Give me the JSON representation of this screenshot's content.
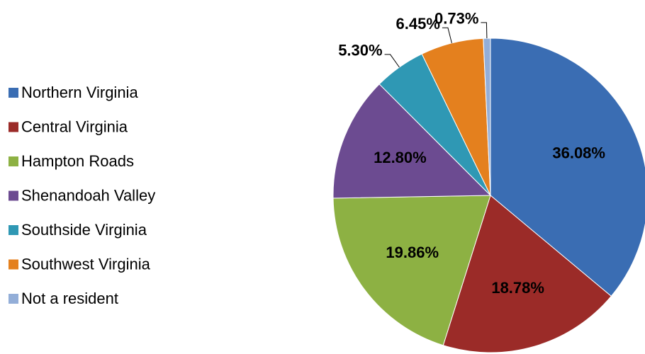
{
  "chart_data": {
    "type": "pie",
    "categories": [
      "Northern Virginia",
      "Central Virginia",
      "Hampton Roads",
      "Shenandoah Valley",
      "Southside Virginia",
      "Southwest Virginia",
      "Not a resident"
    ],
    "values": [
      36.08,
      18.78,
      19.86,
      12.8,
      5.3,
      6.45,
      0.73
    ],
    "value_labels": [
      "36.08%",
      "18.78%",
      "19.86%",
      "12.80%",
      "5.30%",
      "6.45%",
      "0.73%"
    ],
    "colors": [
      "#3a6db3",
      "#9b2b28",
      "#8db143",
      "#6c4b91",
      "#2f98b4",
      "#e4801e",
      "#93aed8"
    ],
    "legend": "left"
  }
}
